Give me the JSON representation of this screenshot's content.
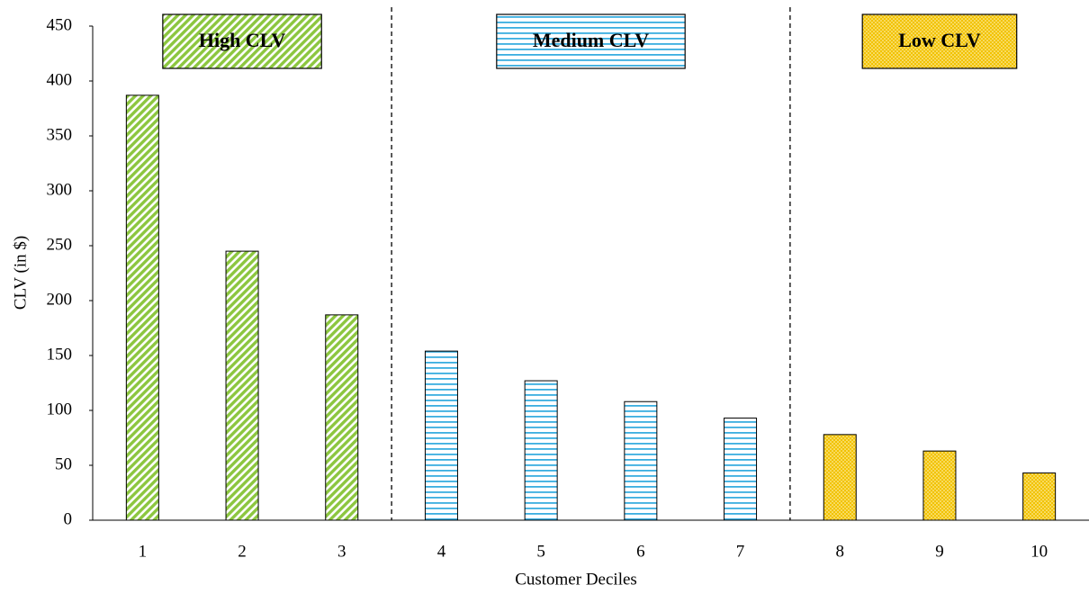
{
  "chart_data": {
    "type": "bar",
    "x_label": "Customer Deciles",
    "y_label": "CLV (in $)",
    "categories": [
      "1",
      "2",
      "3",
      "4",
      "5",
      "6",
      "7",
      "8",
      "9",
      "10"
    ],
    "series": [
      {
        "name": "High CLV",
        "color": "#8cc63f",
        "pattern": "diagonal",
        "values": [
          387,
          245,
          187,
          null,
          null,
          null,
          null,
          null,
          null,
          null
        ]
      },
      {
        "name": "Medium CLV",
        "color": "#3aaee0",
        "pattern": "horizontal",
        "values": [
          null,
          null,
          null,
          154,
          127,
          108,
          93,
          null,
          null,
          null
        ]
      },
      {
        "name": "Low CLV",
        "color": "#f2c200",
        "pattern": "dots",
        "values": [
          null,
          null,
          null,
          null,
          null,
          null,
          null,
          78,
          63,
          43
        ]
      }
    ],
    "ylim": [
      0,
      450
    ],
    "yticks": [
      0,
      50,
      100,
      150,
      200,
      250,
      300,
      350,
      400,
      450
    ]
  }
}
